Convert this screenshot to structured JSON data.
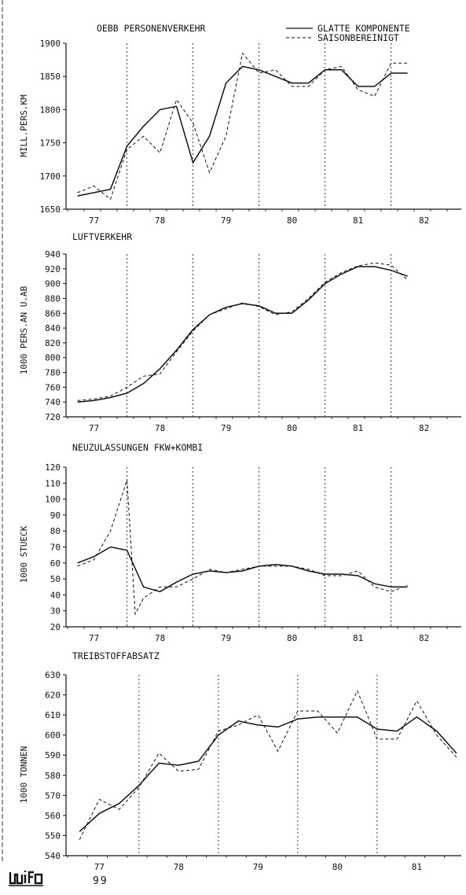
{
  "footer": {
    "page_number": "99",
    "logo_text": "wifo"
  },
  "legend": [
    {
      "label": "GLATTE KOMPONENTE",
      "style": "solid"
    },
    {
      "label": "SAISONBEREINIGT",
      "style": "dashed"
    }
  ],
  "chart_data": [
    {
      "type": "line",
      "title": "OEBB PERSONENVERKEHR",
      "ylabel": "MILL.PERS.KM",
      "xlabel": "",
      "x_ticks": [
        "77",
        "78",
        "79",
        "80",
        "81",
        "82"
      ],
      "x_range": [
        76.6,
        82.9
      ],
      "ylim": [
        1650,
        1900
      ],
      "y_ticks": [
        1650,
        1700,
        1750,
        1800,
        1850,
        1900
      ],
      "year_markers": [
        77.5,
        78.5,
        79.5,
        80.5,
        81.5
      ],
      "series": [
        {
          "name": "GLATTE KOMPONENTE",
          "style": "solid",
          "x": [
            76.75,
            77.25,
            77.5,
            77.75,
            78.0,
            78.25,
            78.5,
            78.75,
            79.0,
            79.25,
            79.5,
            79.75,
            80.0,
            80.25,
            80.5,
            80.75,
            81.0,
            81.25,
            81.5,
            81.75
          ],
          "values": [
            1670,
            1680,
            1745,
            1775,
            1800,
            1805,
            1720,
            1760,
            1840,
            1865,
            1860,
            1850,
            1840,
            1840,
            1860,
            1860,
            1835,
            1835,
            1855,
            1855
          ]
        },
        {
          "name": "SAISONBEREINIGT",
          "style": "dashed",
          "x": [
            76.75,
            77.0,
            77.25,
            77.5,
            77.75,
            78.0,
            78.25,
            78.5,
            78.75,
            79.0,
            79.25,
            79.5,
            79.75,
            80.0,
            80.25,
            80.5,
            80.75,
            81.0,
            81.25,
            81.5,
            81.75
          ],
          "values": [
            1675,
            1685,
            1665,
            1740,
            1760,
            1735,
            1815,
            1780,
            1705,
            1760,
            1885,
            1855,
            1860,
            1835,
            1835,
            1860,
            1865,
            1830,
            1820,
            1870,
            1870
          ]
        }
      ]
    },
    {
      "type": "line",
      "title": "LUFTVERKEHR",
      "ylabel": "1000 PERS.AN U.AB",
      "xlabel": "",
      "x_ticks": [
        "77",
        "78",
        "79",
        "80",
        "81",
        "82"
      ],
      "x_range": [
        76.6,
        82.9
      ],
      "ylim": [
        720,
        940
      ],
      "y_ticks": [
        720,
        740,
        760,
        780,
        800,
        820,
        840,
        860,
        880,
        900,
        920,
        940
      ],
      "year_markers": [
        77.5,
        78.5,
        79.5,
        80.5,
        81.5
      ],
      "series": [
        {
          "name": "GLATTE KOMPONENTE",
          "style": "solid",
          "x": [
            76.75,
            77.0,
            77.25,
            77.5,
            77.75,
            78.0,
            78.25,
            78.5,
            78.75,
            79.0,
            79.25,
            79.5,
            79.75,
            80.0,
            80.25,
            80.5,
            80.75,
            81.0,
            81.25,
            81.5,
            81.75
          ],
          "values": [
            740,
            742,
            746,
            752,
            765,
            785,
            810,
            838,
            858,
            868,
            873,
            870,
            860,
            860,
            878,
            900,
            913,
            923,
            923,
            918,
            910
          ]
        },
        {
          "name": "SAISONBEREINIGT",
          "style": "dashed",
          "x": [
            76.75,
            77.0,
            77.25,
            77.5,
            77.75,
            78.0,
            78.25,
            78.5,
            78.75,
            79.0,
            79.25,
            79.5,
            79.75,
            80.0,
            80.25,
            80.5,
            80.75,
            81.0,
            81.25,
            81.5,
            81.75
          ],
          "values": [
            742,
            744,
            748,
            760,
            775,
            778,
            808,
            836,
            858,
            866,
            874,
            869,
            858,
            862,
            880,
            902,
            915,
            924,
            928,
            925,
            905
          ]
        }
      ]
    },
    {
      "type": "line",
      "title": "NEUZULASSUNGEN FKW+KOMBI",
      "ylabel": "1000 STUECK",
      "xlabel": "",
      "x_ticks": [
        "77",
        "78",
        "79",
        "80",
        "81",
        "82"
      ],
      "x_range": [
        76.6,
        82.9
      ],
      "ylim": [
        20,
        120
      ],
      "y_ticks": [
        20,
        30,
        40,
        50,
        60,
        70,
        80,
        90,
        100,
        110,
        120
      ],
      "year_markers": [
        77.5,
        78.5,
        79.5,
        80.5,
        81.5
      ],
      "series": [
        {
          "name": "GLATTE KOMPONENTE",
          "style": "solid",
          "x": [
            76.75,
            77.0,
            77.25,
            77.5,
            77.75,
            78.0,
            78.25,
            78.5,
            78.75,
            79.0,
            79.25,
            79.5,
            79.75,
            80.0,
            80.25,
            80.5,
            80.75,
            81.0,
            81.25,
            81.5,
            81.75
          ],
          "values": [
            60,
            64,
            70,
            68,
            45,
            42,
            48,
            53,
            55,
            54,
            55,
            58,
            59,
            58,
            55,
            53,
            53,
            52,
            47,
            45,
            45
          ]
        },
        {
          "name": "SAISONBEREINIGT",
          "style": "dashed",
          "x": [
            76.75,
            77.0,
            77.25,
            77.5,
            77.625,
            77.75,
            78.0,
            78.25,
            78.5,
            78.75,
            79.0,
            79.25,
            79.5,
            79.75,
            80.0,
            80.25,
            80.5,
            80.75,
            81.0,
            81.25,
            81.5,
            81.75
          ],
          "values": [
            58,
            62,
            80,
            112,
            28,
            38,
            45,
            45,
            50,
            56,
            54,
            56,
            58,
            58,
            58,
            56,
            52,
            52,
            55,
            45,
            42,
            46
          ]
        }
      ]
    },
    {
      "type": "line",
      "title": "TREIBSTOFFABSATZ",
      "ylabel": "1000 TONNEN",
      "xlabel": "",
      "x_ticks": [
        "77",
        "78",
        "79",
        "80",
        "81"
      ],
      "x_range": [
        76.6,
        81.6
      ],
      "ylim": [
        540,
        630
      ],
      "y_ticks": [
        540,
        550,
        560,
        570,
        580,
        590,
        600,
        610,
        620,
        630
      ],
      "year_markers": [
        77.5,
        78.5,
        79.5,
        80.5
      ],
      "series": [
        {
          "name": "GLATTE KOMPONENTE",
          "style": "solid",
          "x": [
            76.75,
            77.0,
            77.25,
            77.5,
            77.75,
            78.0,
            78.25,
            78.5,
            78.75,
            79.0,
            79.25,
            79.5,
            79.75,
            80.0,
            80.25,
            80.5,
            80.75,
            81.0,
            81.25,
            81.5
          ],
          "values": [
            552,
            561,
            566,
            575,
            586,
            585,
            587,
            600,
            607,
            605,
            604,
            608,
            609,
            609,
            609,
            603,
            602,
            609,
            602,
            591
          ]
        },
        {
          "name": "SAISONBEREINIGT",
          "style": "dashed",
          "x": [
            76.75,
            77.0,
            77.25,
            77.5,
            77.75,
            78.0,
            78.25,
            78.5,
            78.75,
            79.0,
            79.25,
            79.5,
            79.75,
            80.0,
            80.25,
            80.5,
            80.75,
            81.0,
            81.25,
            81.5
          ],
          "values": [
            548,
            568,
            563,
            574,
            591,
            582,
            583,
            602,
            605,
            610,
            592,
            612,
            612,
            601,
            622,
            598,
            598,
            617,
            600,
            589
          ]
        }
      ]
    }
  ]
}
